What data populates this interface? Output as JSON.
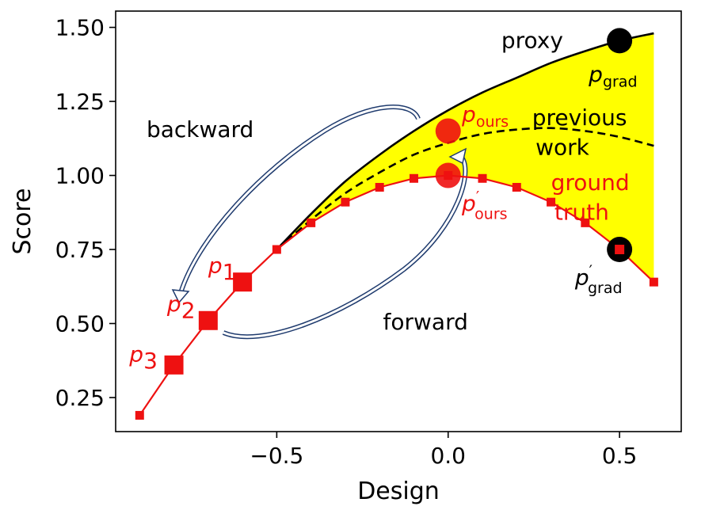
{
  "chart_data": {
    "type": "line",
    "title": "",
    "xlabel": "Design",
    "ylabel": "Score",
    "xlim": [
      -0.97,
      0.68
    ],
    "ylim": [
      0.135,
      1.555
    ],
    "xticks": [
      -0.5,
      0.0,
      0.5
    ],
    "xtick_labels": [
      "−0.5",
      "0.0",
      "0.5"
    ],
    "yticks": [
      0.25,
      0.5,
      0.75,
      1.0,
      1.25,
      1.5
    ],
    "ytick_labels": [
      "0.25",
      "0.50",
      "0.75",
      "1.00",
      "1.25",
      "1.50"
    ],
    "grid": false,
    "legend": "none",
    "colors": {
      "ground_truth": "#ee1111",
      "proxy": "#000000",
      "fill": "#ffff00",
      "arrow": "#1f3b6e",
      "marker_black": "#000000"
    },
    "series": [
      {
        "x": [
          -0.9,
          -0.8,
          -0.7,
          -0.6,
          -0.5,
          -0.4,
          -0.3,
          -0.2,
          -0.1,
          0.0,
          0.1,
          0.2,
          0.3,
          0.4,
          0.5,
          0.6
        ],
        "y": [
          0.19,
          0.36,
          0.51,
          0.64,
          0.75,
          0.84,
          0.91,
          0.96,
          0.99,
          1.0,
          0.99,
          0.96,
          0.91,
          0.84,
          0.75,
          0.64
        ]
      },
      {
        "x": [
          -0.5,
          -0.4,
          -0.3,
          -0.2,
          -0.1,
          0.0,
          0.1,
          0.2,
          0.3,
          0.4,
          0.5,
          0.6
        ],
        "y": [
          0.75,
          0.87,
          0.98,
          1.07,
          1.15,
          1.22,
          1.28,
          1.33,
          1.38,
          1.42,
          1.455,
          1.48
        ]
      },
      {
        "x": [
          -0.5,
          -0.4,
          -0.3,
          -0.2,
          -0.1,
          0.0,
          0.1,
          0.2,
          0.3,
          0.4,
          0.5,
          0.6
        ],
        "y": [
          0.75,
          0.85,
          0.94,
          1.01,
          1.07,
          1.11,
          1.14,
          1.155,
          1.16,
          1.15,
          1.13,
          1.1
        ]
      }
    ],
    "points": [
      {
        "label": "p",
        "sub": "1",
        "prime": "",
        "x": -0.6,
        "y": 0.64,
        "color": "#ee1111",
        "label_dx": -0.1,
        "label_dy": 0.03
      },
      {
        "label": "p",
        "sub": "2",
        "prime": "",
        "x": -0.7,
        "y": 0.51,
        "color": "#ee1111",
        "label_dx": -0.12,
        "label_dy": 0.03
      },
      {
        "label": "p",
        "sub": "3",
        "prime": "",
        "x": -0.8,
        "y": 0.36,
        "color": "#ee1111",
        "label_dx": -0.13,
        "label_dy": 0.01
      },
      {
        "label": "p",
        "sub": "ours",
        "prime": "",
        "x": 0.0,
        "y": 1.15,
        "color": "#ee1111",
        "label_dx": 0.04,
        "label_dy": 0.03
      },
      {
        "label": "p",
        "sub": "ours",
        "prime": "′",
        "x": 0.0,
        "y": 1.0,
        "color": "#ee1111",
        "label_dx": 0.04,
        "label_dy": -0.12
      },
      {
        "label": "p",
        "sub": "grad",
        "prime": "",
        "x": 0.5,
        "y": 1.455,
        "color": "#000000",
        "label_dx": -0.09,
        "label_dy": -0.14
      },
      {
        "label": "p",
        "sub": "grad",
        "prime": "′",
        "x": 0.5,
        "y": 0.75,
        "color": "#000000",
        "label_dx": -0.13,
        "label_dy": -0.12
      }
    ],
    "annotations": [
      {
        "text": "proxy",
        "x": 0.155,
        "y": 1.43,
        "color": "#000000"
      },
      {
        "text": "previous",
        "x": 0.245,
        "y": 1.17,
        "color": "#000000"
      },
      {
        "text": "work",
        "x": 0.255,
        "y": 1.07,
        "color": "#000000"
      },
      {
        "text": "ground",
        "x": 0.3,
        "y": 0.95,
        "color": "#ee1111"
      },
      {
        "text": "truth",
        "x": 0.31,
        "y": 0.85,
        "color": "#ee1111"
      },
      {
        "text": "backward",
        "x": -0.88,
        "y": 1.13,
        "color": "#000000"
      },
      {
        "text": "forward",
        "x": -0.19,
        "y": 0.48,
        "color": "#000000"
      }
    ]
  }
}
